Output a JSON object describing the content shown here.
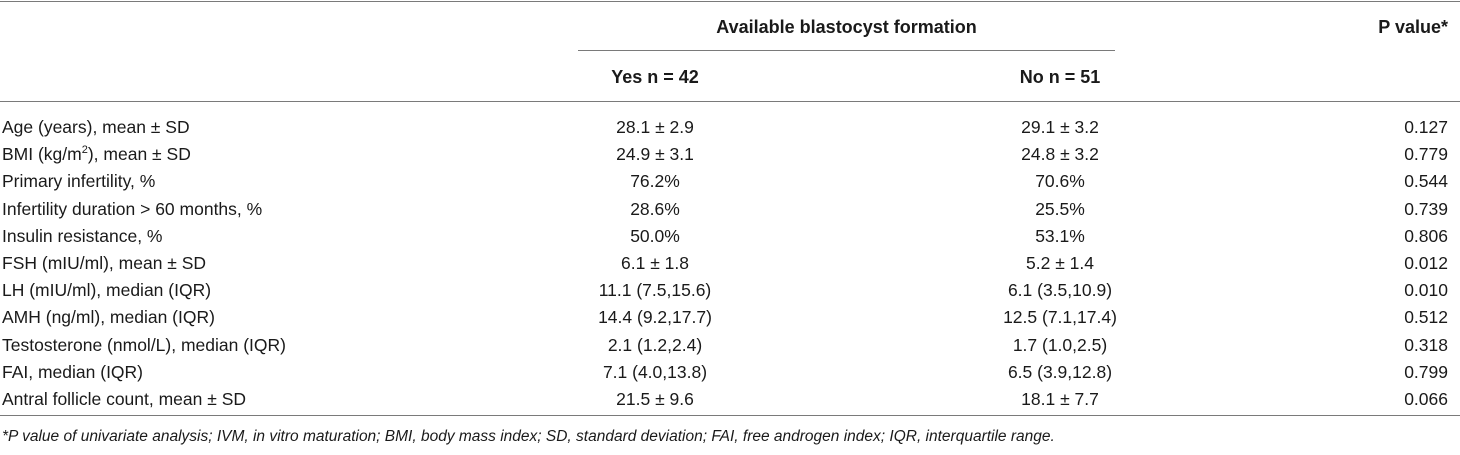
{
  "header": {
    "group_title": "Available blastocyst formation",
    "pvalue_title": "P value*",
    "col_yes": "Yes n = 42",
    "col_no": "No n = 51"
  },
  "rows": [
    {
      "label": "Age (years), mean ± SD",
      "yes": "28.1 ± 2.9",
      "no": "29.1 ± 3.2",
      "p": "0.127"
    },
    {
      "label_pre": "BMI (kg/m",
      "label_sup": "2",
      "label_post": "), mean ± SD",
      "yes": "24.9 ± 3.1",
      "no": "24.8 ± 3.2",
      "p": "0.779"
    },
    {
      "label": "Primary infertility, %",
      "yes": "76.2%",
      "no": "70.6%",
      "p": "0.544"
    },
    {
      "label": "Infertility duration > 60 months, %",
      "yes": "28.6%",
      "no": "25.5%",
      "p": "0.739"
    },
    {
      "label": "Insulin resistance, %",
      "yes": "50.0%",
      "no": "53.1%",
      "p": "0.806"
    },
    {
      "label": "FSH (mIU/ml), mean ± SD",
      "yes": "6.1 ± 1.8",
      "no": "5.2 ± 1.4",
      "p": "0.012"
    },
    {
      "label": "LH (mIU/ml), median (IQR)",
      "yes": "11.1 (7.5,15.6)",
      "no": "6.1 (3.5,10.9)",
      "p": "0.010"
    },
    {
      "label": "AMH (ng/ml), median (IQR)",
      "yes": "14.4 (9.2,17.7)",
      "no": "12.5 (7.1,17.4)",
      "p": "0.512"
    },
    {
      "label": "Testosterone (nmol/L), median (IQR)",
      "yes": "2.1 (1.2,2.4)",
      "no": "1.7 (1.0,2.5)",
      "p": "0.318"
    },
    {
      "label": "FAI, median (IQR)",
      "yes": "7.1 (4.0,13.8)",
      "no": "6.5 (3.9,12.8)",
      "p": "0.799"
    },
    {
      "label": "Antral follicle count, mean ± SD",
      "yes": "21.5 ± 9.6",
      "no": "18.1 ± 7.7",
      "p": "0.066"
    }
  ],
  "footnote": "*P value of univariate analysis; IVM, in vitro maturation; BMI, body mass index; SD, standard deviation; FAI, free androgen index; IQR, interquartile range."
}
